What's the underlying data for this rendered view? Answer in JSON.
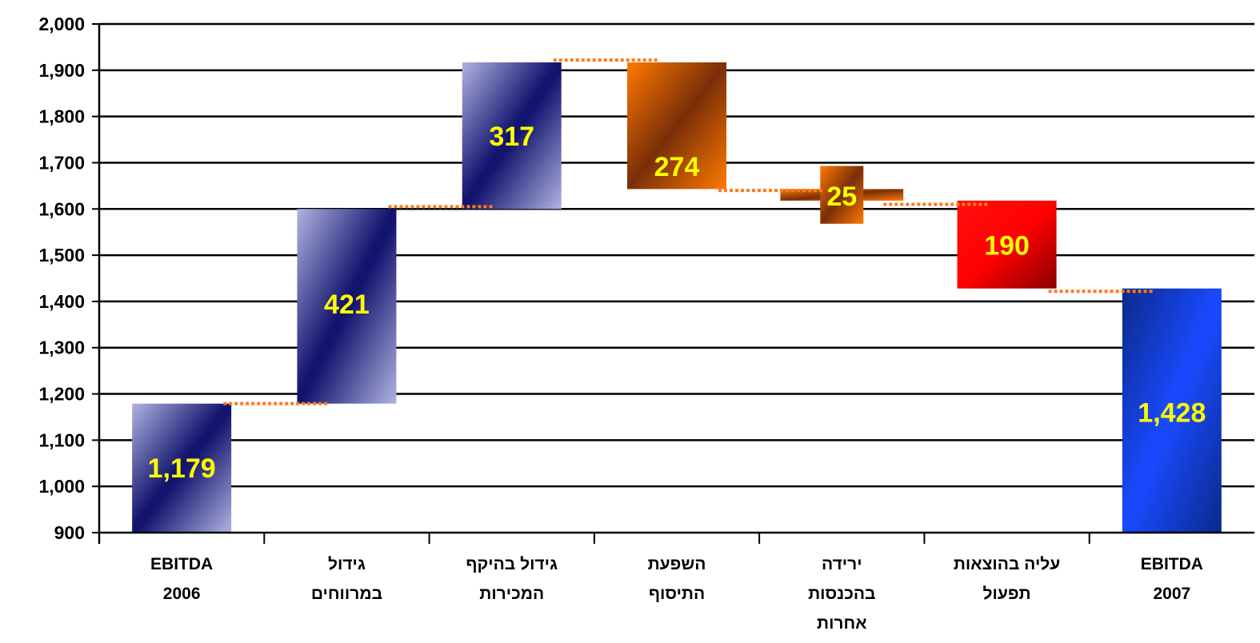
{
  "colors": {
    "label": "#ffff00",
    "gridline": "#000000",
    "connector": "#ff7a1a"
  },
  "chart_data": {
    "type": "bar",
    "subtype": "waterfall",
    "ylim": [
      900,
      2000
    ],
    "yticks": [
      "900",
      "1,000",
      "1,100",
      "1,200",
      "1,300",
      "1,400",
      "1,500",
      "1,600",
      "1,700",
      "1,800",
      "1,900",
      "2,000"
    ],
    "grid": true,
    "categories": [
      [
        "EBITDA",
        "2006"
      ],
      [
        "גידול",
        "במרווחים"
      ],
      [
        "גידול בהיקף",
        "המכירות"
      ],
      [
        "השפעת",
        "התיסוף"
      ],
      [
        "ירידה",
        "בהכנסות",
        "אחרות"
      ],
      [
        "עליה בהוצאות",
        "תפעול"
      ],
      [
        "EBITDA",
        "2007"
      ]
    ],
    "bars": [
      {
        "start": 900,
        "end": 1179,
        "label": "1,179",
        "fill": "navy-gradient",
        "label_y": 1040
      },
      {
        "start": 1179,
        "end": 1600,
        "label": "421",
        "fill": "navy-gradient",
        "label_y": 1395
      },
      {
        "start": 1600,
        "end": 1917,
        "label": "317",
        "fill": "navy-gradient",
        "label_y": 1758
      },
      {
        "start": 1643,
        "end": 1917,
        "label": "274",
        "fill": "brown-gradient",
        "label_y": 1692
      },
      {
        "start": 1618,
        "end": 1643,
        "label": "25",
        "fill": "brown-gradient",
        "label_y": 1628,
        "thin": true,
        "label_box": [
          1568,
          1693
        ]
      },
      {
        "start": 1428,
        "end": 1618,
        "label": "190",
        "fill": "red-gradient",
        "label_y": 1522
      },
      {
        "start": 900,
        "end": 1428,
        "label": "1,428",
        "fill": "blue-gradient",
        "label_y": 1160
      }
    ],
    "connectors": [
      {
        "from": 0,
        "value": 1179
      },
      {
        "from": 1,
        "value": 1605
      },
      {
        "from": 2,
        "value": 1922
      },
      {
        "from": 3,
        "value": 1640
      },
      {
        "from": 4,
        "value": 1610
      },
      {
        "from": 5,
        "value": 1422
      }
    ]
  }
}
